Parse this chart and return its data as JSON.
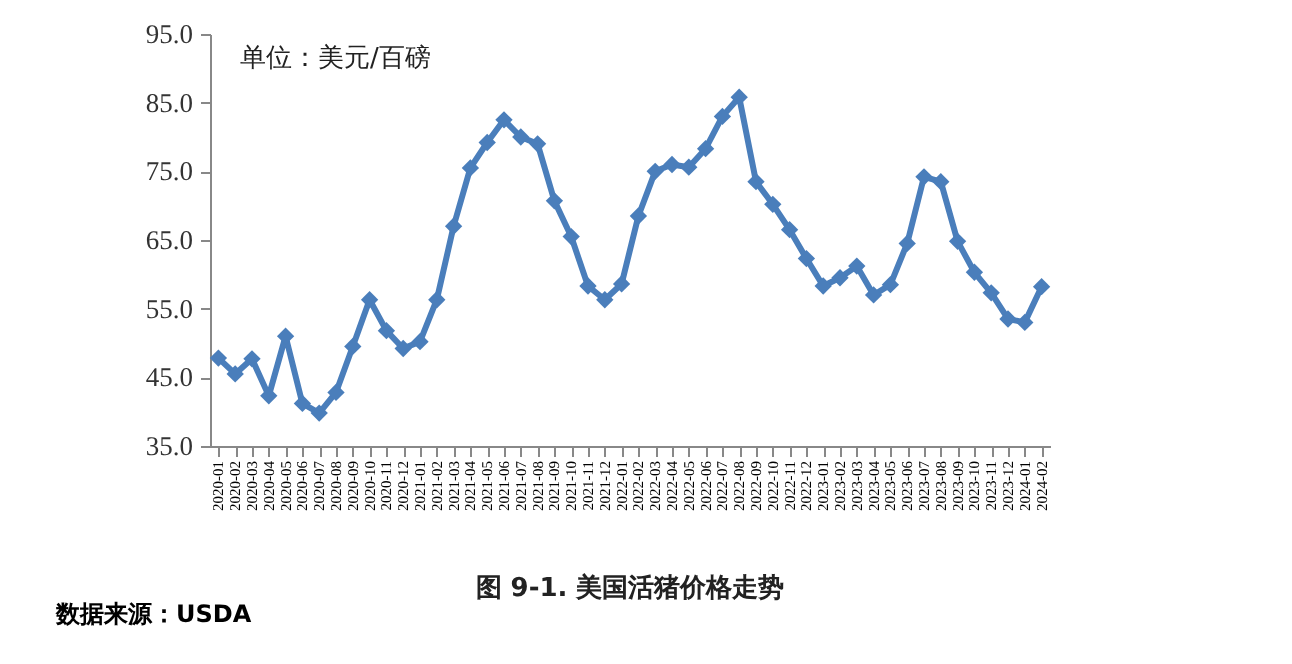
{
  "chart_data": {
    "type": "line",
    "title": "图 9-1.  美国活猪价格走势",
    "annotations": [
      "单位：美元/百磅",
      "数据来源：USDA"
    ],
    "categories": [
      "2020-01",
      "2020-02",
      "2020-03",
      "2020-04",
      "2020-05",
      "2020-06",
      "2020-07",
      "2020-08",
      "2020-09",
      "2020-10",
      "2020-11",
      "2020-12",
      "2021-01",
      "2021-02",
      "2021-03",
      "2021-04",
      "2021-05",
      "2021-06",
      "2021-07",
      "2021-08",
      "2021-09",
      "2021-10",
      "2021-11",
      "2021-12",
      "2022-01",
      "2022-02",
      "2022-03",
      "2022-04",
      "2022-05",
      "2022-06",
      "2022-07",
      "2022-08",
      "2022-09",
      "2022-10",
      "2022-11",
      "2022-12",
      "2023-01",
      "2023-02",
      "2023-03",
      "2023-04",
      "2023-05",
      "2023-06",
      "2023-07",
      "2023-08",
      "2023-09",
      "2023-10",
      "2023-11",
      "2023-12",
      "2024-01",
      "2024-02"
    ],
    "series": [
      {
        "color": "#4a7ebb",
        "values": [
          47.8,
          45.5,
          47.7,
          42.3,
          51.0,
          41.2,
          39.8,
          42.8,
          49.5,
          56.3,
          51.8,
          49.2,
          50.2,
          56.3,
          67.0,
          75.5,
          79.2,
          82.5,
          80.0,
          79.0,
          70.7,
          65.5,
          58.3,
          56.3,
          58.6,
          68.5,
          75.0,
          76.0,
          75.6,
          78.3,
          83.0,
          85.8,
          73.5,
          70.2,
          66.5,
          62.3,
          58.3,
          59.5,
          61.2,
          57.0,
          58.5,
          64.5,
          74.2,
          73.5,
          64.8,
          60.3,
          57.3,
          53.5,
          53.0,
          58.2
        ]
      }
    ],
    "ylim": [
      35,
      95
    ],
    "yticks": [
      {
        "value": 35,
        "label": "35.0"
      },
      {
        "value": 45,
        "label": "45.0"
      },
      {
        "value": 55,
        "label": "55.0"
      },
      {
        "value": 65,
        "label": "65.0"
      },
      {
        "value": 75,
        "label": "75.0"
      },
      {
        "value": 85,
        "label": "85.0"
      },
      {
        "value": 95,
        "label": "95.0"
      }
    ],
    "grid": false,
    "marker": "diamond",
    "line_style": "solid"
  }
}
